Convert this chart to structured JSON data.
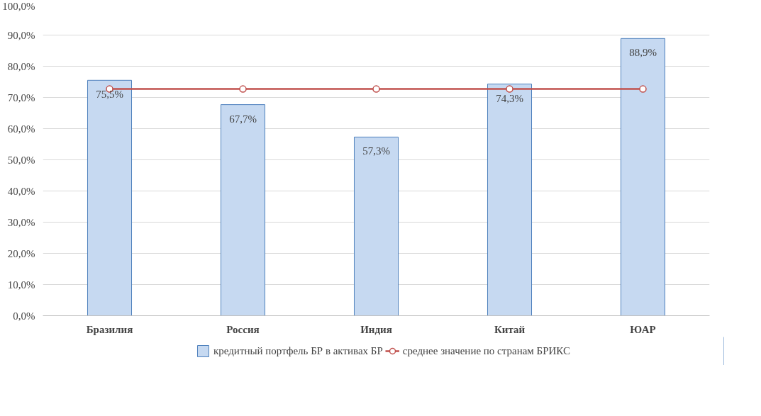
{
  "chart_data": {
    "type": "bar",
    "categories": [
      "Бразилия",
      "Россия",
      "Индия",
      "Китай",
      "ЮАР"
    ],
    "series": [
      {
        "name": "кредитный портфель БР в активах БР",
        "color": "#c6d9f1",
        "values": [
          75.5,
          67.7,
          57.3,
          74.3,
          88.9
        ],
        "value_labels": [
          "75,5%",
          "67,7%",
          "57,3%",
          "74,3%",
          "88,9%"
        ]
      },
      {
        "name": "среднее значение по странам БРИКС",
        "type": "line",
        "color": "#c0504d",
        "marker": "circle",
        "values": [
          72.7,
          72.7,
          72.7,
          72.7,
          72.7
        ]
      }
    ],
    "ylim": [
      0,
      100
    ],
    "yticks": [
      {
        "value": 0,
        "label": "0,0%"
      },
      {
        "value": 10,
        "label": "10,0%"
      },
      {
        "value": 20,
        "label": "20,0%"
      },
      {
        "value": 30,
        "label": "30,0%"
      },
      {
        "value": 40,
        "label": "40,0%"
      },
      {
        "value": 50,
        "label": "50,0%"
      },
      {
        "value": 60,
        "label": "60,0%"
      },
      {
        "value": 70,
        "label": "70,0%"
      },
      {
        "value": 80,
        "label": "80,0%"
      },
      {
        "value": 90,
        "label": "90,0%"
      },
      {
        "value": 100,
        "label": "100,0%"
      }
    ],
    "grid": "y",
    "legend": "bottom"
  }
}
